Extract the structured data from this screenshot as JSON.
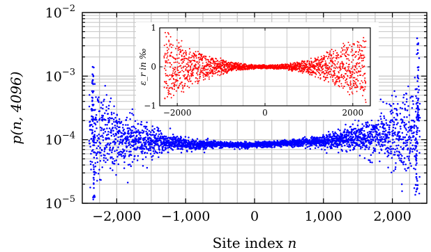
{
  "chart_data": [
    {
      "id": "main",
      "type": "scatter",
      "title": "",
      "xlabel": "Site index n",
      "ylabel": "p(n, 4096)",
      "xlim": [
        -2500,
        2500
      ],
      "ylim": [
        1e-05,
        0.01
      ],
      "yscale": "log",
      "grid": true,
      "x_ticks": [
        -2000,
        -1000,
        0,
        1000,
        2000
      ],
      "x_tick_labels": [
        "−2,000",
        "−1,000",
        "0",
        "1,000",
        "2,000"
      ],
      "y_ticks": [
        1e-05,
        0.0001,
        0.001,
        0.01
      ],
      "y_tick_labels": [
        {
          "base": "10",
          "exp": "−5"
        },
        {
          "base": "10",
          "exp": "−4"
        },
        {
          "base": "10",
          "exp": "−3"
        },
        {
          "base": "10",
          "exp": "−2"
        }
      ],
      "color": "#0000ff",
      "series": [
        {
          "n_range": [
            -2400,
            2400
          ],
          "baseline": [
            {
              "x": -2400,
              "y": 0.00013
            },
            {
              "x": -2000,
              "y": 0.000105
            },
            {
              "x": -1000,
              "y": 8.5e-05
            },
            {
              "x": 0,
              "y": 8.2e-05
            },
            {
              "x": 1000,
              "y": 9.5e-05
            },
            {
              "x": 2000,
              "y": 0.00012
            },
            {
              "x": 2400,
              "y": 0.00014
            }
          ],
          "peaks": [
            {
              "x": -2350,
              "y": 0.0015
            },
            {
              "x": 2370,
              "y": 0.004
            }
          ],
          "dips": [
            {
              "x": -2330,
              "y": 1.2e-05
            },
            {
              "x": 2350,
              "y": 1.5e-05
            }
          ]
        }
      ]
    },
    {
      "id": "inset",
      "type": "scatter",
      "title": "",
      "xlabel": "",
      "ylabel": "ε_r in ‰",
      "xlim": [
        -2400,
        2400
      ],
      "ylim": [
        -1,
        1
      ],
      "grid": true,
      "x_ticks": [
        -2000,
        0,
        2000
      ],
      "x_tick_labels": [
        "−2000",
        "0",
        "2000"
      ],
      "y_ticks": [
        -1,
        0,
        1
      ],
      "y_tick_labels": [
        "−1",
        "0",
        "1"
      ],
      "color": "#ff0000",
      "ylabel_parts": {
        "sym": "ε",
        "sub": "r",
        "rest": " in ‰"
      },
      "series": [
        {
          "n_range": [
            -2300,
            2300
          ],
          "spread_center": 0.05,
          "spread_edge": 1.0
        }
      ]
    }
  ]
}
